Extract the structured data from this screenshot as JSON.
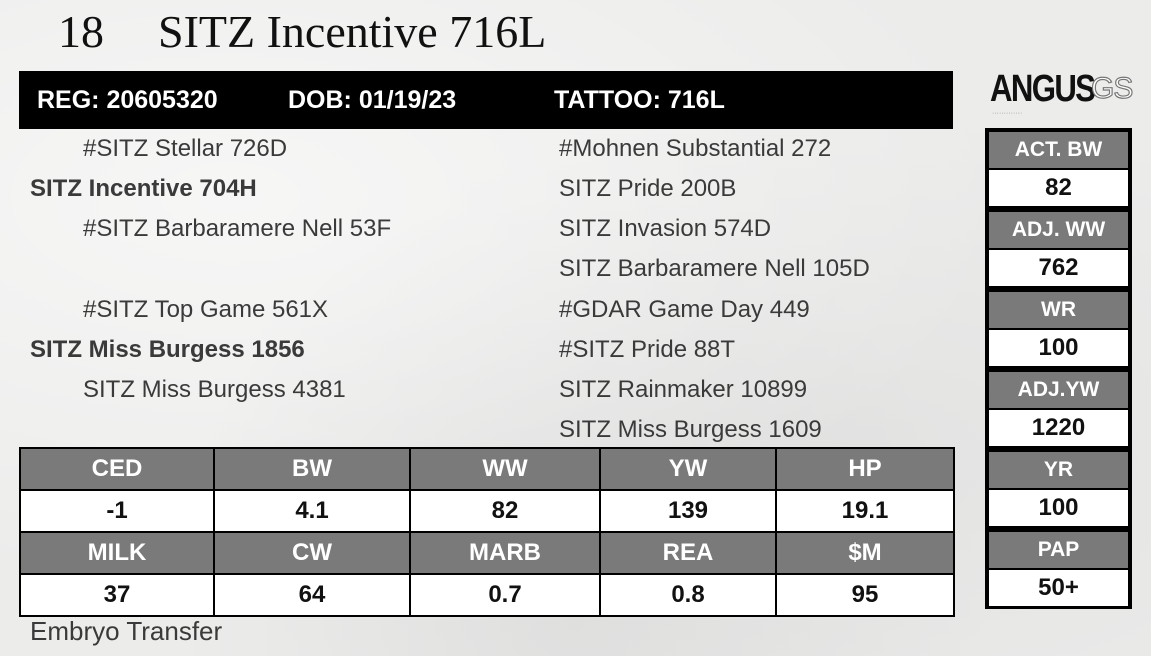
{
  "lot": {
    "number": "18",
    "name": "SITZ Incentive 716L"
  },
  "registration": {
    "reg": "REG: 20605320",
    "dob": "DOB: 01/19/23",
    "tattoo": "TATTOO: 716L"
  },
  "logo": {
    "main": "ANGUS",
    "suffix": "GS"
  },
  "pedigree": {
    "sire_sire": "#SITZ Stellar 726D",
    "sire": "SITZ Incentive 704H",
    "sire_dam": "#SITZ Barbaramere Nell 53F",
    "dam_sire": "#SITZ Top Game 561X",
    "dam": "SITZ Miss Burgess 1856",
    "dam_dam": "SITZ Miss Burgess 4381",
    "grand": [
      "#Mohnen Substantial 272",
      "SITZ Pride 200B",
      "SITZ Invasion 574D",
      "SITZ Barbaramere Nell 105D",
      "#GDAR Game Day 449",
      "#SITZ Pride 88T",
      "SITZ Rainmaker 10899",
      "SITZ Miss Burgess 1609"
    ]
  },
  "epd": {
    "row1_headers": [
      "CED",
      "BW",
      "WW",
      "YW",
      "HP"
    ],
    "row1_values": [
      "-1",
      "4.1",
      "82",
      "139",
      "19.1"
    ],
    "row2_headers": [
      "MILK",
      "CW",
      "MARB",
      "REA",
      "$M"
    ],
    "row2_values": [
      "37",
      "64",
      "0.7",
      "0.8",
      "95"
    ]
  },
  "performance": [
    {
      "label": "ACT. BW",
      "value": "82"
    },
    {
      "label": "ADJ. WW",
      "value": "762"
    },
    {
      "label": "WR",
      "value": "100"
    },
    {
      "label": "ADJ.YW",
      "value": "1220"
    },
    {
      "label": "YR",
      "value": "100"
    },
    {
      "label": "PAP",
      "value": "50+"
    }
  ],
  "footer": {
    "note": "Embryo Transfer"
  },
  "colors": {
    "header_gray": "#7a7a7b",
    "bar_black": "#000000",
    "page_bg": "#ececeb"
  }
}
